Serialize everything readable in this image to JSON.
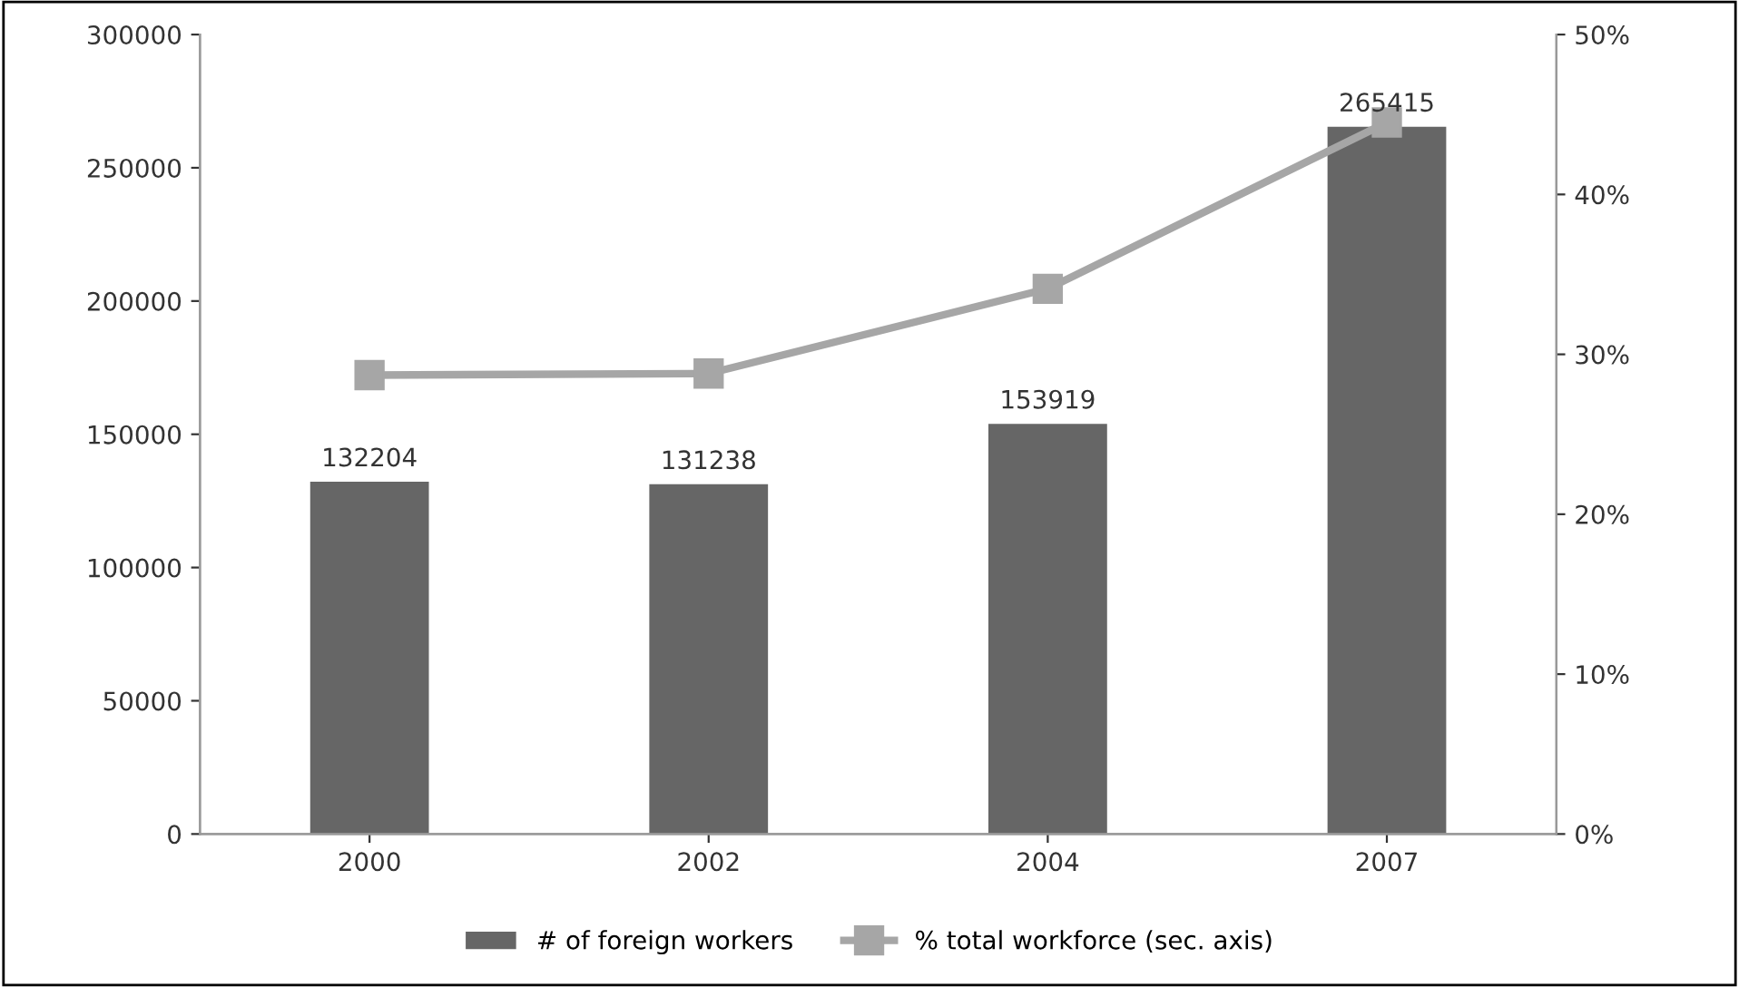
{
  "chart_data": {
    "type": "bar",
    "categories": [
      "2000",
      "2002",
      "2004",
      "2007"
    ],
    "series": [
      {
        "name": "# of foreign workers",
        "color": "#666666",
        "values": [
          132204,
          131238,
          153919,
          265415
        ],
        "value_labels": [
          "132204",
          "131238",
          "153919",
          "265415"
        ]
      },
      {
        "name": "% total workforce (sec. axis)",
        "type": "line",
        "axis": "y2",
        "color": "#a6a6a6",
        "marker": "square",
        "values": [
          28.7,
          28.8,
          34.1,
          44.5
        ]
      }
    ],
    "ylim": [
      0,
      300000
    ],
    "yticks": [
      0,
      50000,
      100000,
      150000,
      200000,
      250000,
      300000
    ],
    "y2lim": [
      0,
      50
    ],
    "y2ticks": [
      {
        "value": 0,
        "label": "0%"
      },
      {
        "value": 10,
        "label": "10%"
      },
      {
        "value": 20,
        "label": "20%"
      },
      {
        "value": 30,
        "label": "30%"
      },
      {
        "value": 40,
        "label": "40%"
      },
      {
        "value": 50,
        "label": "50%"
      }
    ],
    "grid": false,
    "legend": "bottom"
  }
}
